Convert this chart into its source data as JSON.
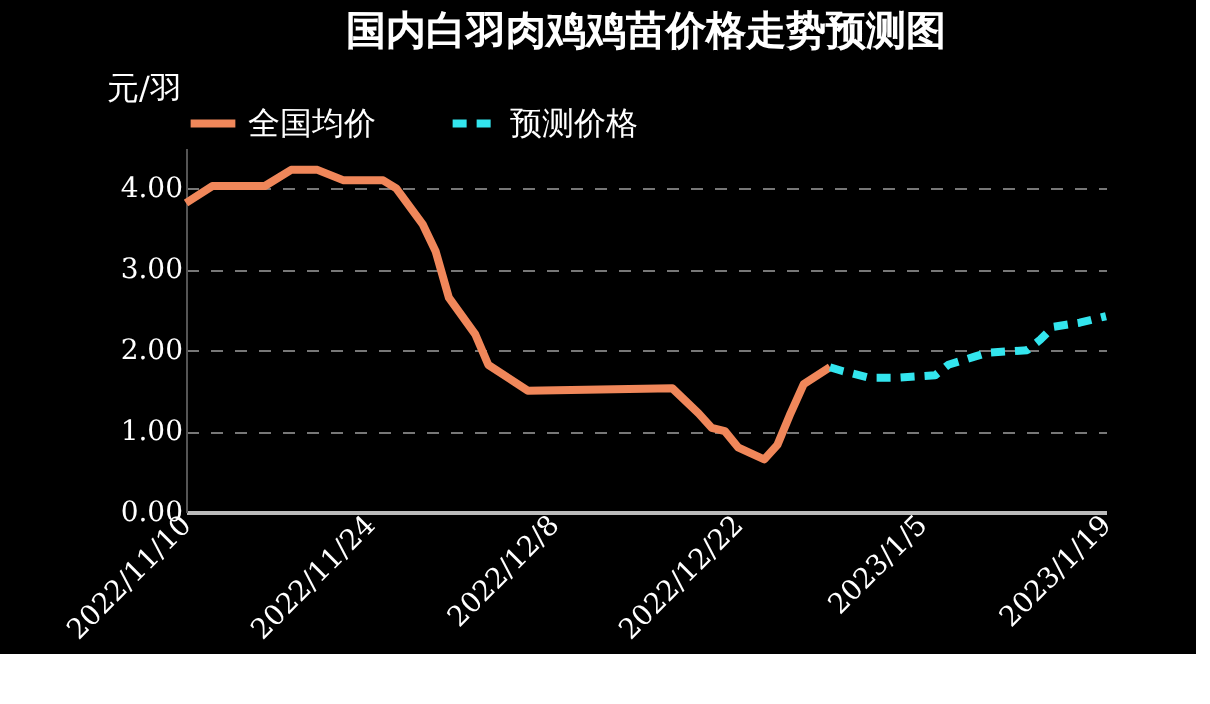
{
  "chart_data": {
    "type": "line",
    "title": "国内白羽肉鸡鸡苗价格走势预测图",
    "ylabel": "元/羽",
    "xlim": [
      "2022-11-10",
      "2023-01-19"
    ],
    "xticks": [
      {
        "value": "2022-11-10",
        "label": "2022/11/10"
      },
      {
        "value": "2022-11-24",
        "label": "2022/11/24"
      },
      {
        "value": "2022-12-08",
        "label": "2022/12/8"
      },
      {
        "value": "2022-12-22",
        "label": "2022/12/22"
      },
      {
        "value": "2023-01-05",
        "label": "2023/1/5"
      },
      {
        "value": "2023-01-19",
        "label": "2023/1/19"
      }
    ],
    "ylim": [
      0,
      4.5
    ],
    "yticks": [
      {
        "value": 0,
        "label": "0.00"
      },
      {
        "value": 1,
        "label": "1.00"
      },
      {
        "value": 2,
        "label": "2.00"
      },
      {
        "value": 3,
        "label": "3.00"
      },
      {
        "value": 4,
        "label": "4.00"
      }
    ],
    "grid": "y",
    "legend": "top",
    "series": [
      {
        "name": "全国均价",
        "color": "#f0875a",
        "line_style": "solid",
        "x": [
          "2022-11-10",
          "2022-11-12",
          "2022-11-16",
          "2022-11-18",
          "2022-11-20",
          "2022-11-22",
          "2022-11-25",
          "2022-11-26",
          "2022-11-28",
          "2022-11-29",
          "2022-11-30",
          "2022-12-02",
          "2022-12-03",
          "2022-12-06",
          "2022-12-17",
          "2022-12-19",
          "2022-12-20",
          "2022-12-21",
          "2022-12-22",
          "2022-12-24",
          "2022-12-25",
          "2022-12-26",
          "2022-12-27",
          "2022-12-29"
        ],
        "values": [
          3.82,
          4.03,
          4.03,
          4.23,
          4.23,
          4.1,
          4.1,
          4.0,
          3.56,
          3.22,
          2.65,
          2.2,
          1.82,
          1.5,
          1.53,
          1.22,
          1.04,
          1.0,
          0.8,
          0.65,
          0.83,
          1.22,
          1.58,
          1.79
        ]
      },
      {
        "name": "预测价格",
        "color": "#33e5ee",
        "line_style": "dashed",
        "x": [
          "2022-12-29",
          "2022-12-30",
          "2023-01-01",
          "2023-01-03",
          "2023-01-06",
          "2023-01-07",
          "2023-01-09",
          "2023-01-10",
          "2023-01-13",
          "2023-01-14",
          "2023-01-15",
          "2023-01-17",
          "2023-01-19"
        ],
        "values": [
          1.79,
          1.74,
          1.66,
          1.66,
          1.69,
          1.82,
          1.92,
          1.97,
          2.0,
          2.13,
          2.29,
          2.34,
          2.42
        ]
      }
    ]
  }
}
